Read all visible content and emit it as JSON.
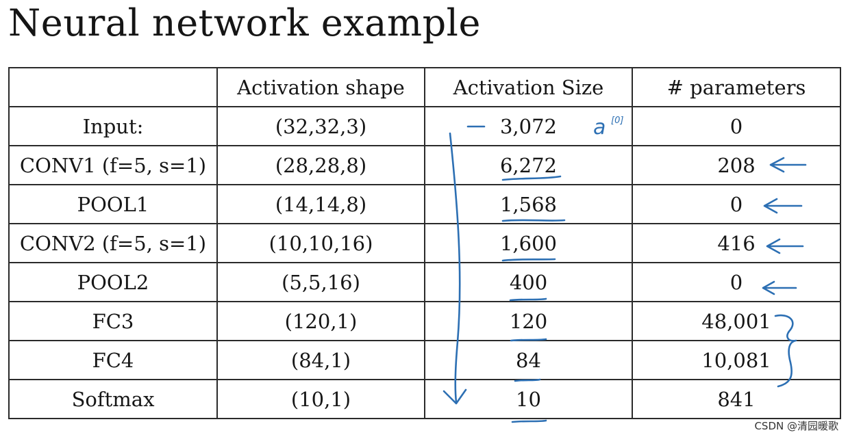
{
  "title": "Neural network example",
  "table": {
    "headers": [
      "",
      "Activation shape",
      "Activation Size",
      "# parameters"
    ],
    "rows": [
      {
        "layer": "Input:",
        "shape": "(32,32,3)",
        "size": "3,072",
        "params": "0"
      },
      {
        "layer": "CONV1 (f=5, s=1)",
        "shape": "(28,28,8)",
        "size": "6,272",
        "params": "208"
      },
      {
        "layer": "POOL1",
        "shape": "(14,14,8)",
        "size": "1,568",
        "params": "0"
      },
      {
        "layer": "CONV2  (f=5, s=1)",
        "shape": "(10,10,16)",
        "size": "1,600",
        "params": "416"
      },
      {
        "layer": "POOL2",
        "shape": "(5,5,16)",
        "size": "400",
        "params": "0"
      },
      {
        "layer": "FC3",
        "shape": "(120,1)",
        "size": "120",
        "params": "48,001"
      },
      {
        "layer": "FC4",
        "shape": "(84,1)",
        "size": "84",
        "params": "10,081"
      },
      {
        "layer": "Softmax",
        "shape": "(10,1)",
        "size": "10",
        "params": "841"
      }
    ]
  },
  "annotation": {
    "a0_label": "a",
    "a0_superscript": "[0]",
    "ink_color": "#2c6fb3"
  },
  "watermark": "CSDN @清园暖歌"
}
